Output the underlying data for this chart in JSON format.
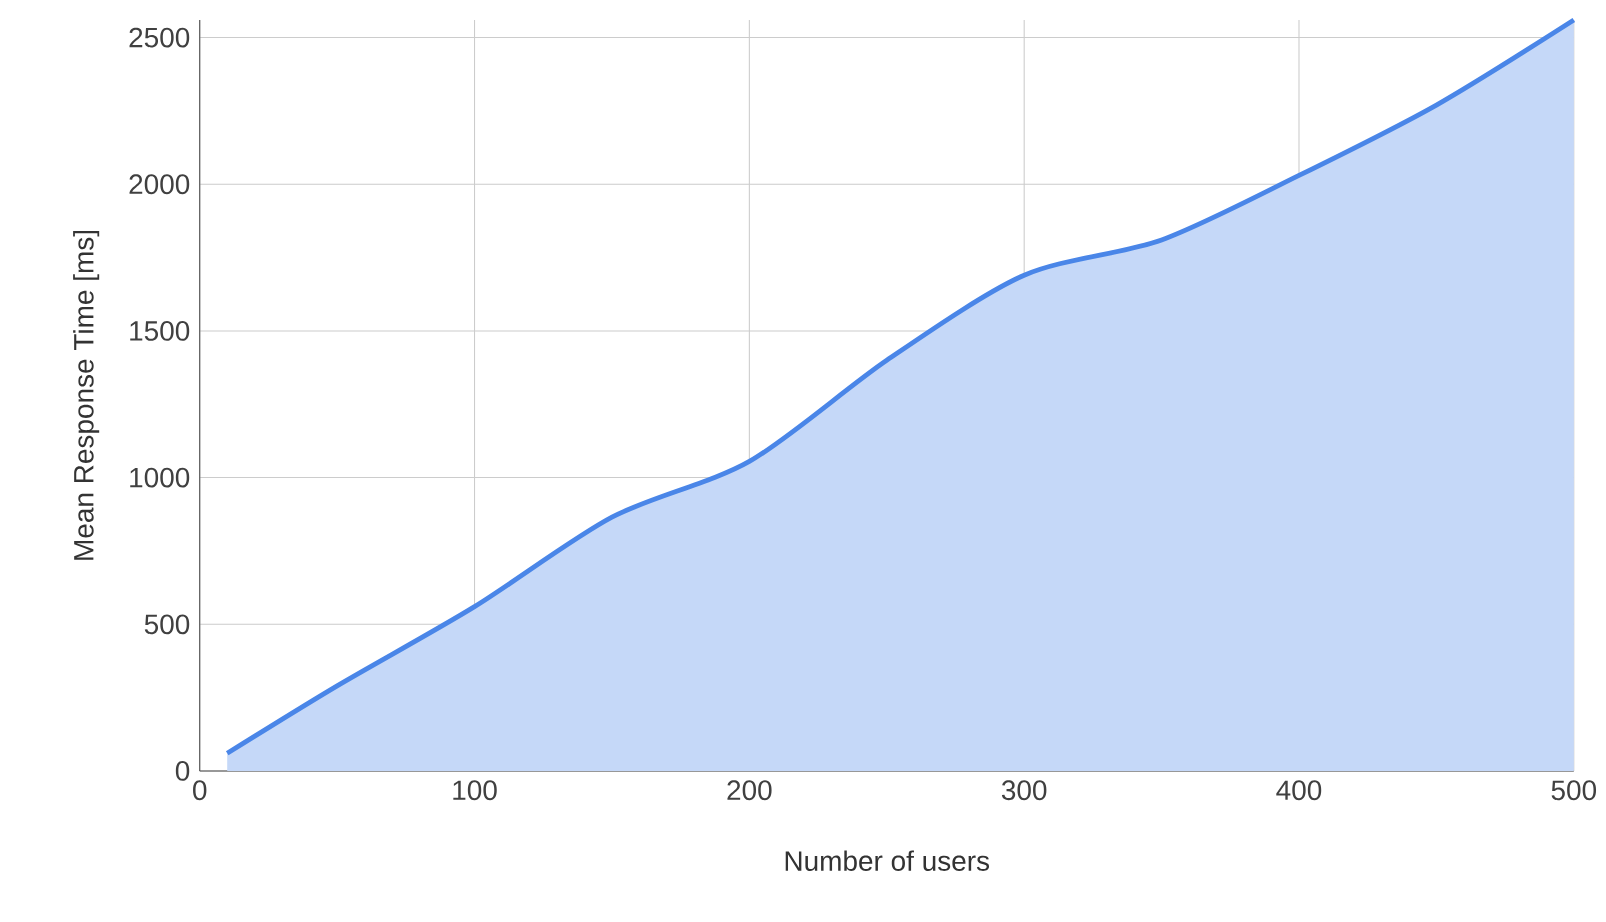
{
  "chart_data": {
    "type": "area",
    "xlabel": "Number of users",
    "ylabel": "Mean Response Time [ms]",
    "x": [
      10,
      50,
      100,
      150,
      200,
      250,
      300,
      350,
      400,
      450,
      500
    ],
    "series": [
      {
        "color": "#4a86e8",
        "values": [
          60,
          290,
          560,
          865,
          1055,
          1400,
          1690,
          1810,
          2030,
          2270,
          2560
        ]
      }
    ],
    "xlim": [
      0,
      500
    ],
    "ylim": [
      0,
      2560
    ],
    "xticks": [
      0,
      100,
      200,
      300,
      400,
      500
    ],
    "yticks": [
      0,
      500,
      1000,
      1500,
      2000,
      2500
    ],
    "grid": true
  }
}
